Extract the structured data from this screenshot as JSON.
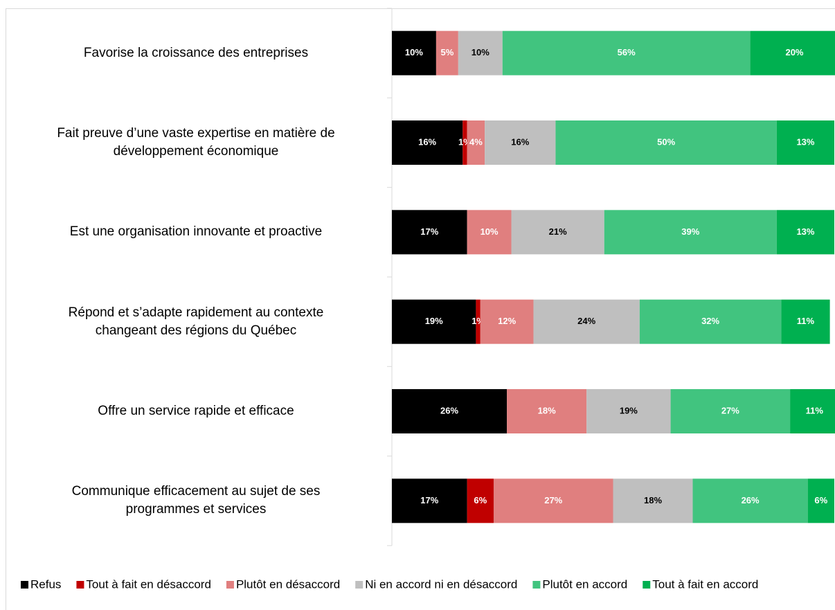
{
  "chart_data": {
    "type": "stacked-barh",
    "categories": [
      "Favorise la croissance des entreprises",
      "Fait preuve d’une vaste expertise en matière de\ndéveloppement économique",
      "Est une organisation innovante et proactive",
      "Répond et s’adapte rapidement au contexte\nchangeant des régions du Québec",
      "Offre un service rapide et efficace",
      "Communique efficacement au sujet de ses\nprogrammes et services"
    ],
    "series": [
      {
        "name": "Refus",
        "color": "#000000",
        "label_color": "#ffffff",
        "values": [
          10,
          16,
          17,
          19,
          26,
          17
        ],
        "value_labels": [
          "10%",
          "16%",
          "17%",
          "19%",
          "26%",
          "17%"
        ]
      },
      {
        "name": "Tout à fait en désaccord",
        "color": "#c00000",
        "label_color": "#ffffff",
        "values": [
          null,
          1,
          null,
          1,
          null,
          6
        ],
        "value_labels": [
          null,
          "1%",
          null,
          "1%",
          null,
          "6%"
        ]
      },
      {
        "name": "Plutôt en désaccord",
        "color": "#e07f7f",
        "label_color": "#ffffff",
        "values": [
          5,
          4,
          10,
          12,
          18,
          27
        ],
        "value_labels": [
          "5%",
          "4%",
          "10%",
          "12%",
          "18%",
          "27%"
        ]
      },
      {
        "name": "Ni en accord ni en désaccord",
        "color": "#bfbfbf",
        "label_color": "#000000",
        "values": [
          10,
          16,
          21,
          24,
          19,
          18
        ],
        "value_labels": [
          "10%",
          "16%",
          "21%",
          "24%",
          "19%",
          "18%"
        ]
      },
      {
        "name": "Plutôt en accord",
        "color": "#41c47f",
        "label_color": "#ffffff",
        "values": [
          56,
          50,
          39,
          32,
          27,
          26
        ],
        "value_labels": [
          "56%",
          "50%",
          "39%",
          "32%",
          "27%",
          "26%"
        ]
      },
      {
        "name": "Tout à fait en accord",
        "color": "#00b050",
        "label_color": "#ffffff",
        "values": [
          20,
          13,
          13,
          11,
          11,
          6
        ],
        "value_labels": [
          "20%",
          "13%",
          "13%",
          "11%",
          "11%",
          "6%"
        ]
      }
    ],
    "xlim": [
      0,
      100
    ],
    "legend": "bottom"
  }
}
